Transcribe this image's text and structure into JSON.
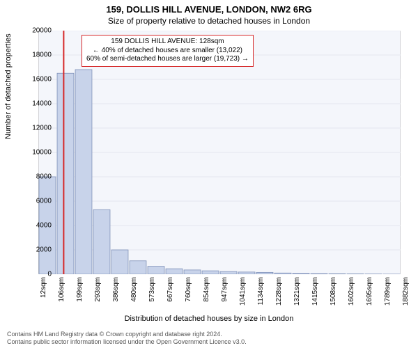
{
  "title_line1": "159, DOLLIS HILL AVENUE, LONDON, NW2 6RG",
  "title_line2": "Size of property relative to detached houses in London",
  "ylabel": "Number of detached properties",
  "xlabel": "Distribution of detached houses by size in London",
  "chart": {
    "type": "histogram",
    "plot_bg": "#f4f6fb",
    "grid_color": "#e5e7ef",
    "axis_color": "#808080",
    "bar_fill": "#c8d3ea",
    "bar_stroke": "#7e90b8",
    "marker_color": "#d62728",
    "ylim": [
      0,
      20000
    ],
    "ytick_step": 2000,
    "yticks": [
      0,
      2000,
      4000,
      6000,
      8000,
      10000,
      12000,
      14000,
      16000,
      18000,
      20000
    ],
    "xticks": [
      "12sqm",
      "106sqm",
      "199sqm",
      "293sqm",
      "386sqm",
      "480sqm",
      "573sqm",
      "667sqm",
      "760sqm",
      "854sqm",
      "947sqm",
      "1041sqm",
      "1134sqm",
      "1228sqm",
      "1321sqm",
      "1415sqm",
      "1508sqm",
      "1602sqm",
      "1695sqm",
      "1789sqm",
      "1882sqm"
    ],
    "bars": [
      8000,
      16500,
      16800,
      5300,
      2000,
      1100,
      650,
      450,
      350,
      280,
      220,
      180,
      150,
      100,
      80,
      50,
      40,
      30,
      20,
      10
    ],
    "marker_bin_index": 1,
    "annotation": {
      "lines": [
        "159 DOLLIS HILL AVENUE: 128sqm",
        "← 40% of detached houses are smaller (13,022)",
        "60% of semi-detached houses are larger (19,723) →"
      ],
      "border_color": "#d62728"
    }
  },
  "footer_line1": "Contains HM Land Registry data © Crown copyright and database right 2024.",
  "footer_line2": "Contains public sector information licensed under the Open Government Licence v3.0."
}
